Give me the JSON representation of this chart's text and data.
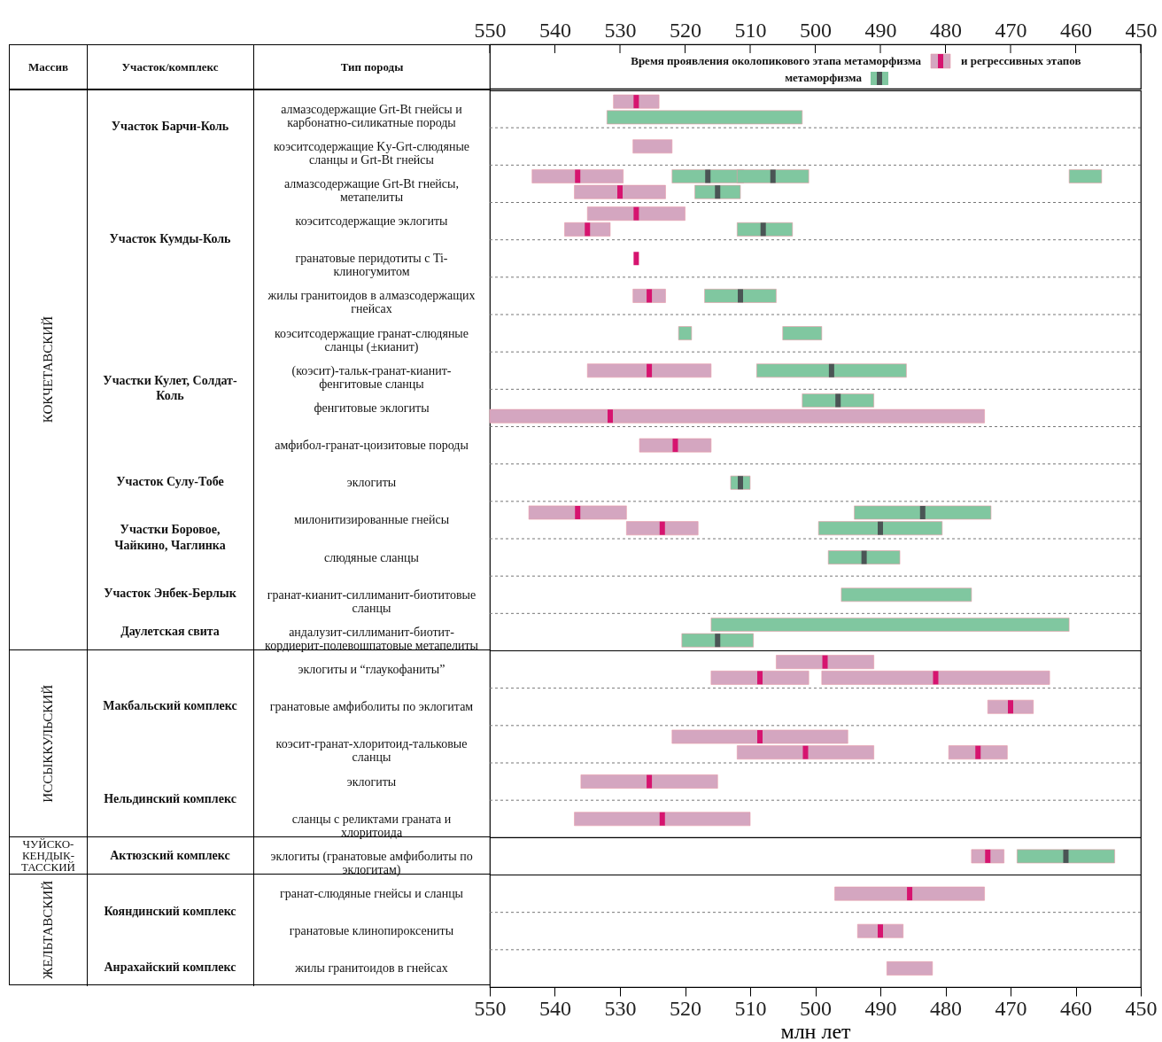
{
  "chart_data": {
    "type": "bar",
    "orientation": "horizontal",
    "xlabel": "млн лет",
    "xlim": [
      550,
      450
    ],
    "xticks": [
      550,
      540,
      530,
      520,
      510,
      500,
      490,
      480,
      470,
      460,
      450
    ],
    "x2lim": [
      550,
      450
    ],
    "x2ticks": [
      550,
      540,
      530,
      520,
      510,
      500,
      490,
      480,
      470,
      460,
      450
    ],
    "grid": "y",
    "legend": "top",
    "marker": "square",
    "categories": [
      "алмазсодержащие Grt-Bt гнейсы и карбонатно-силикатные породы",
      "коэситсодержащие Ky-Grt-слюдяные сланцы и Grt-Bt гнейсы",
      "алмазсодержащие Grt-Bt гнейсы, метапелиты",
      "коэситсодержащие эклогиты",
      "гранатовые перидотиты с Ti-клиногумитом",
      "жилы гранитоидов в алмазсодержащих гнейсах",
      "коэситсодержащие гранат-слюдяные сланцы (±кианит)",
      "(коэсит)-тальк-гранат-кианит-фенгитовые сланцы",
      "фенгитовые эклогиты",
      "амфибол-гранат-цоизитовые породы",
      "эклогиты",
      "милонитизированные гнейсы",
      "слюдяные сланцы",
      "гранат-кианит-силлиманит-биотитовые сланцы",
      "андалузит-силлиманит-биотит-кордиерит-полевошпатовые метапелиты",
      "эклогиты и “глаукофаниты”",
      "гранатовые амфиболиты по эклогитам",
      "коэсит-гранат-хлоритоид-тальковые сланцы",
      "эклогиты",
      "сланцы с реликтами граната и хлоритоида",
      "эклогиты (гранатовые амфиболиты по эклогитам)",
      "гранат-слюдяные гнейсы и сланцы",
      "гранатовые клинопироксениты",
      "жилы гранитоидов в гнейсах"
    ],
    "series": [
      {
        "name": "Время проявления околопикового этапа метаморфизма",
        "color": "#d4a6c0",
        "base": [
          524,
          522,
          529.5,
          520,
          null,
          523,
          null,
          516,
          null,
          516,
          null,
          529,
          null,
          null,
          null,
          491,
          466.5,
          495,
          515,
          510,
          471,
          474,
          486.5,
          482
        ],
        "values": [
          7,
          6,
          14,
          15,
          null,
          5,
          null,
          19,
          null,
          11,
          null,
          15,
          null,
          null,
          null,
          15,
          7,
          27,
          21,
          27,
          5,
          23,
          7,
          7
        ]
      },
      {
        "color": "#d4a6c0",
        "base": [
          null,
          null,
          523,
          531.5,
          null,
          null,
          null,
          null,
          474,
          null,
          null,
          518,
          null,
          null,
          null,
          501,
          null,
          491,
          null,
          null,
          null,
          null,
          null,
          null
        ],
        "values": [
          null,
          null,
          14,
          7,
          null,
          null,
          null,
          null,
          76,
          null,
          null,
          11,
          null,
          null,
          null,
          15,
          null,
          21,
          null,
          null,
          null,
          null,
          null,
          null
        ]
      },
      {
        "name": "и регрессивных этапов метаморфизма",
        "color": "#80c7a0",
        "base": [
          null,
          null,
          511,
          null,
          null,
          506,
          519,
          486,
          491,
          null,
          510,
          473,
          487,
          476,
          461,
          null,
          null,
          null,
          null,
          null,
          454,
          null,
          null,
          null
        ],
        "values": [
          null,
          null,
          11,
          null,
          null,
          11,
          2,
          23,
          11,
          null,
          3,
          21,
          11,
          20,
          55,
          null,
          null,
          null,
          null,
          null,
          15,
          null,
          null,
          null
        ]
      },
      {
        "color": "#80c7a0",
        "base": [
          502,
          null,
          null,
          503.5,
          null,
          null,
          null,
          null,
          null,
          null,
          null,
          480.5,
          null,
          null,
          509.5,
          null,
          null,
          null,
          null,
          null,
          null,
          null,
          null,
          null
        ],
        "values": [
          30,
          null,
          null,
          8.5,
          null,
          null,
          null,
          null,
          null,
          null,
          null,
          19,
          null,
          null,
          11,
          null,
          null,
          null,
          null,
          null,
          null,
          null,
          null,
          null
        ]
      },
      {
        "color": "#80c7a0",
        "base": [
          null,
          null,
          456,
          null,
          null,
          null,
          499,
          null,
          null,
          null,
          null,
          null,
          null,
          null,
          null,
          null,
          null,
          null,
          null,
          null,
          null,
          null,
          null,
          null
        ],
        "values": [
          null,
          null,
          5,
          null,
          null,
          null,
          6,
          null,
          null,
          null,
          null,
          null,
          null,
          null,
          null,
          null,
          null,
          null,
          null,
          null,
          null,
          null,
          null,
          null
        ]
      },
      {
        "color": "#d4a6c0",
        "base": [
          null,
          null,
          null,
          null,
          null,
          null,
          null,
          null,
          null,
          null,
          null,
          null,
          null,
          null,
          null,
          464,
          null,
          470.5,
          null,
          null,
          null,
          null,
          null,
          null
        ],
        "values": [
          null,
          null,
          null,
          null,
          null,
          null,
          null,
          null,
          null,
          null,
          null,
          null,
          null,
          null,
          null,
          35,
          null,
          9,
          null,
          null,
          null,
          null,
          null,
          null
        ]
      },
      {
        "color": "#80c7a0",
        "base": [
          null,
          null,
          501,
          null,
          null,
          null,
          null,
          null,
          null,
          null,
          null,
          null,
          null,
          null,
          null,
          null,
          null,
          null,
          null,
          null,
          null,
          null,
          null,
          null
        ],
        "values": [
          null,
          null,
          11,
          null,
          null,
          null,
          null,
          null,
          null,
          null,
          null,
          null,
          null,
          null,
          null,
          null,
          null,
          null,
          null,
          null,
          null,
          null,
          null,
          null
        ]
      },
      {
        "color": "#80c7a0",
        "base": [
          null,
          null,
          511.5,
          null,
          null,
          null,
          null,
          null,
          null,
          null,
          null,
          null,
          null,
          null,
          null,
          null,
          null,
          null,
          null,
          null,
          null,
          null,
          null,
          null
        ],
        "values": [
          null,
          null,
          7,
          null,
          null,
          null,
          null,
          null,
          null,
          null,
          null,
          null,
          null,
          null,
          null,
          null,
          null,
          null,
          null,
          null,
          null,
          null,
          null,
          null
        ]
      },
      {
        "type": "scatter",
        "color": "#d6146f",
        "values": [
          527.5,
          null,
          536.5,
          527.5,
          527.5,
          525.5,
          null,
          525.5,
          null,
          521.5,
          null,
          536.5,
          null,
          null,
          null,
          498.5,
          470,
          508.5,
          525.5,
          523.5,
          473.5,
          485.5,
          490,
          null
        ]
      },
      {
        "type": "scatter",
        "color": "#d6146f",
        "values": [
          null,
          null,
          530,
          535,
          null,
          null,
          null,
          null,
          531.5,
          null,
          null,
          523.5,
          null,
          null,
          null,
          508.5,
          null,
          501.5,
          null,
          null,
          null,
          null,
          null,
          null
        ]
      },
      {
        "type": "scatter",
        "color": "#4a5555",
        "values": [
          null,
          null,
          516.5,
          null,
          null,
          511.5,
          null,
          497.5,
          496.5,
          null,
          511.5,
          483.5,
          492.5,
          null,
          null,
          null,
          null,
          null,
          null,
          null,
          461.5,
          null,
          null,
          null
        ]
      },
      {
        "type": "scatter",
        "color": "#4a5555",
        "values": [
          null,
          null,
          515,
          508,
          null,
          null,
          null,
          null,
          null,
          null,
          null,
          490,
          null,
          null,
          515,
          null,
          null,
          null,
          null,
          null,
          null,
          null,
          null,
          null
        ]
      },
      {
        "type": "scatter",
        "color": "#4a5555",
        "values": [
          null,
          null,
          506.5,
          null,
          null,
          null,
          null,
          null,
          null,
          null,
          null,
          null,
          null,
          null,
          null,
          null,
          null,
          null,
          null,
          null,
          null,
          null,
          null,
          null
        ]
      },
      {
        "type": "scatter",
        "color": "#d6146f",
        "values": [
          null,
          null,
          null,
          null,
          null,
          null,
          null,
          null,
          null,
          null,
          null,
          null,
          null,
          null,
          null,
          481.5,
          null,
          475,
          null,
          null,
          null,
          null,
          null,
          null
        ]
      }
    ],
    "annotations": [
      "Массив",
      "Участок/комплекс",
      "Тип породы",
      "КОКЧЕТАВСКИЙ",
      "ИССЫККУЛЬСКИЙ",
      "ЧУЙСКО-КЕНДЫК-ТАССКИЙ",
      "ЖЕЛЬТАВСКИЙ",
      "Участок Барчи-Коль",
      "Участок Кумды-Коль",
      "Участки Кулет, Солдат-Коль",
      "Участок Сулу-Тобе",
      "Участки Боровое, Чайкино, Чаглинка",
      "Участок Энбек-Берлык",
      "Даулетская свита",
      "Макбальский комплекс",
      "Нельдинский комплекс",
      "Актюзский комплекс",
      "Кояндинский комплекс",
      "Анрахайский комплекс"
    ]
  }
}
